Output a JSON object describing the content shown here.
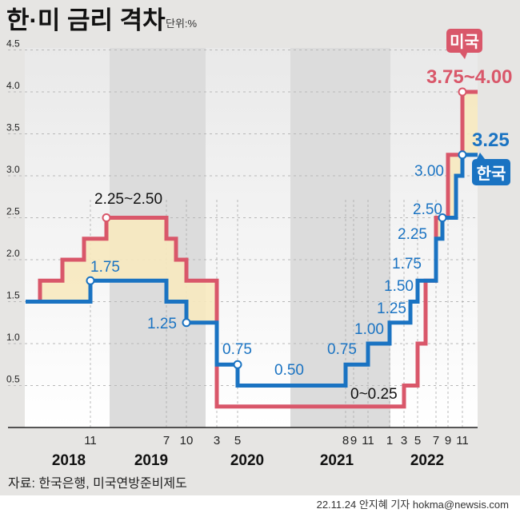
{
  "title": "한·미 금리 격차",
  "unit": "단위:%",
  "source": "자료: 한국은행, 미국연방준비제도",
  "credit": "22.11.24 안지혜 기자 hokma@newsis.com",
  "colors": {
    "korea": "#1a73c2",
    "us": "#d9576a",
    "gap_fill": "#f7e9bf",
    "background": "#e6e5e3"
  },
  "chart_data": {
    "type": "line",
    "step": true,
    "title": "한·미 금리 격차",
    "ylabel": "단위:%",
    "ylim": [
      0,
      4.5
    ],
    "y_ticks": [
      "0.5",
      "1.0",
      "1.5",
      "2.0",
      "2.5",
      "3.0",
      "3.5",
      "4.0",
      "4.5"
    ],
    "grid": true,
    "x_month_ticks": [
      {
        "date": "2018-11",
        "label": "11"
      },
      {
        "date": "2019-07",
        "label": "7"
      },
      {
        "date": "2019-10",
        "label": "10"
      },
      {
        "date": "2020-03",
        "label": "3"
      },
      {
        "date": "2020-05",
        "label": "5"
      },
      {
        "date": "2021-08",
        "label": "8"
      },
      {
        "date": "2021-09",
        "label": "9"
      },
      {
        "date": "2021-11",
        "label": "11"
      },
      {
        "date": "2022-01",
        "label": "1"
      },
      {
        "date": "2022-03",
        "label": "3"
      },
      {
        "date": "2022-05",
        "label": "5"
      },
      {
        "date": "2022-07",
        "label": "7"
      },
      {
        "date": "2022-09",
        "label": "9"
      },
      {
        "date": "2022-11",
        "label": "11"
      }
    ],
    "x_years": [
      "2018",
      "2019",
      "2020",
      "2021",
      "2022"
    ],
    "series": [
      {
        "name": "미국",
        "color": "#d9576a",
        "points": [
          [
            "2018-01",
            1.5
          ],
          [
            "2018-03",
            1.75
          ],
          [
            "2018-06",
            2.0
          ],
          [
            "2018-09",
            2.25
          ],
          [
            "2018-12",
            2.5
          ],
          [
            "2019-07",
            2.25
          ],
          [
            "2019-09",
            2.0
          ],
          [
            "2019-10",
            1.75
          ],
          [
            "2020-03",
            0.25
          ],
          [
            "2022-03",
            0.5
          ],
          [
            "2022-05",
            1.0
          ],
          [
            "2022-06",
            1.75
          ],
          [
            "2022-07",
            2.5
          ],
          [
            "2022-09",
            3.25
          ],
          [
            "2022-11",
            4.0
          ],
          [
            "2022-12",
            4.0
          ]
        ]
      },
      {
        "name": "한국",
        "color": "#1a73c2",
        "points": [
          [
            "2018-01",
            1.5
          ],
          [
            "2018-11",
            1.75
          ],
          [
            "2019-07",
            1.5
          ],
          [
            "2019-10",
            1.25
          ],
          [
            "2020-03",
            0.75
          ],
          [
            "2020-05",
            0.5
          ],
          [
            "2021-08",
            0.75
          ],
          [
            "2021-11",
            1.0
          ],
          [
            "2022-01",
            1.25
          ],
          [
            "2022-04",
            1.5
          ],
          [
            "2022-05",
            1.75
          ],
          [
            "2022-07",
            2.25
          ],
          [
            "2022-08",
            2.5
          ],
          [
            "2022-10",
            3.0
          ],
          [
            "2022-11",
            3.25
          ],
          [
            "2022-12",
            3.25
          ]
        ]
      }
    ],
    "annotations": {
      "us_2018": "2.25~2.50",
      "kr_2018": "1.75",
      "kr_2019": "1.25",
      "kr_2020a": "0.75",
      "kr_2020b": "0.50",
      "us_2020": "0~0.25",
      "kr_2021a": "0.75",
      "kr_2021b": "1.00",
      "kr_2022a": "1.25",
      "kr_2022b": "1.50",
      "kr_2022c": "1.75",
      "kr_2022d": "2.25",
      "kr_2022e": "2.50",
      "kr_2022f": "3.00",
      "kr_now": "3.25",
      "us_now": "3.75~4.00",
      "us_badge": "미국",
      "kr_badge": "한국"
    }
  }
}
